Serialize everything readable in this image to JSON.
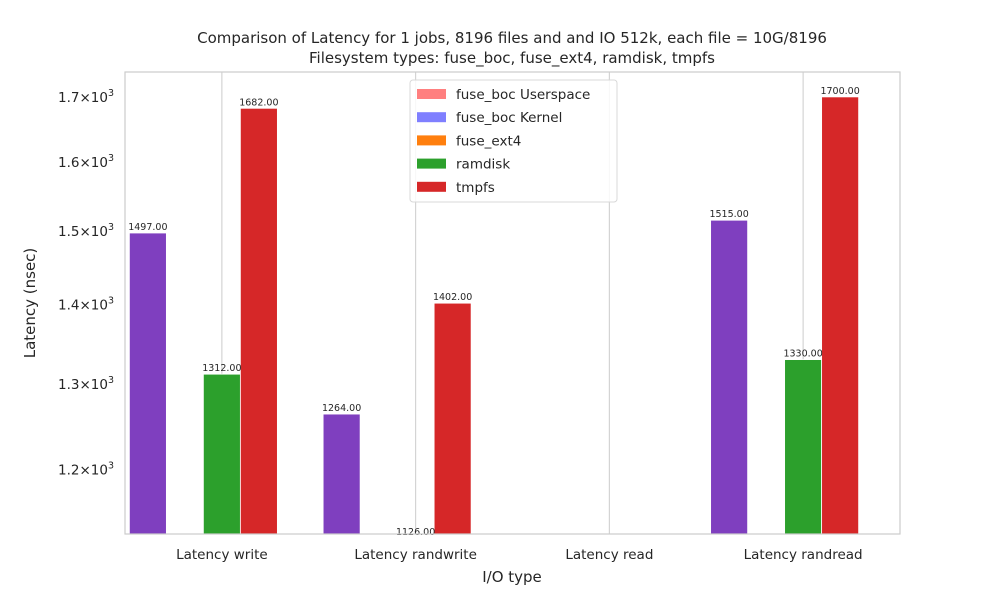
{
  "chart_data": {
    "type": "bar",
    "title": "Comparison of Latency for 1 jobs, 8196 files and  and IO 512k, each file = 10G/8196",
    "subtitle": "Filesystem types: fuse_boc, fuse_ext4, ramdisk, tmpfs",
    "xlabel": "I/O type",
    "ylabel": "Latency (nsec)",
    "yscale": "log",
    "ylim": [
      1130,
      1740
    ],
    "yticks": [
      1200,
      1300,
      1400,
      1500,
      1600,
      1700
    ],
    "ytick_labels": [
      {
        "mant": "1.2",
        "base": "10",
        "exp": "3"
      },
      {
        "mant": "1.3",
        "base": "10",
        "exp": "3"
      },
      {
        "mant": "1.4",
        "base": "10",
        "exp": "3"
      },
      {
        "mant": "1.5",
        "base": "10",
        "exp": "3"
      },
      {
        "mant": "1.6",
        "base": "10",
        "exp": "3"
      },
      {
        "mant": "1.7",
        "base": "10",
        "exp": "3"
      }
    ],
    "grid": true,
    "legend_position": "top-center",
    "categories": [
      "Latency write",
      "Latency randwrite",
      "Latency read",
      "Latency randread"
    ],
    "series": [
      {
        "name": "fuse_boc Userspace",
        "color": "#ff7f7f",
        "alpha": 1.0,
        "values": [
          null,
          null,
          null,
          null
        ],
        "show_labels": false
      },
      {
        "name": "fuse_boc Kernel",
        "color": "#7f7fff",
        "alpha": 1.0,
        "values": [
          1497,
          1264,
          null,
          1515
        ],
        "show_labels": false
      },
      {
        "name": "fuse_ext4",
        "color": "#ff7f0e",
        "alpha": 1.0,
        "values": [
          null,
          null,
          null,
          null
        ],
        "show_labels": false
      },
      {
        "name": "ramdisk",
        "color": "#2ca02c",
        "alpha": 1.0,
        "values": [
          1312,
          1126,
          null,
          1330
        ],
        "show_labels": true
      },
      {
        "name": "tmpfs",
        "color": "#d62728",
        "alpha": 1.0,
        "values": [
          1682,
          1402,
          null,
          1700
        ],
        "show_labels": true
      }
    ],
    "stacked_overlay": {
      "color": "#7f3fbf",
      "values": [
        1497,
        1264,
        null,
        1515
      ],
      "labels": [
        "1497.00",
        "1264.00",
        null,
        "1515.00"
      ]
    },
    "value_labels": {
      "ramdisk": [
        "1312.00",
        "1126.00",
        null,
        "1330.00"
      ],
      "tmpfs": [
        "1682.00",
        "1402.00",
        null,
        "1700.00"
      ]
    }
  }
}
